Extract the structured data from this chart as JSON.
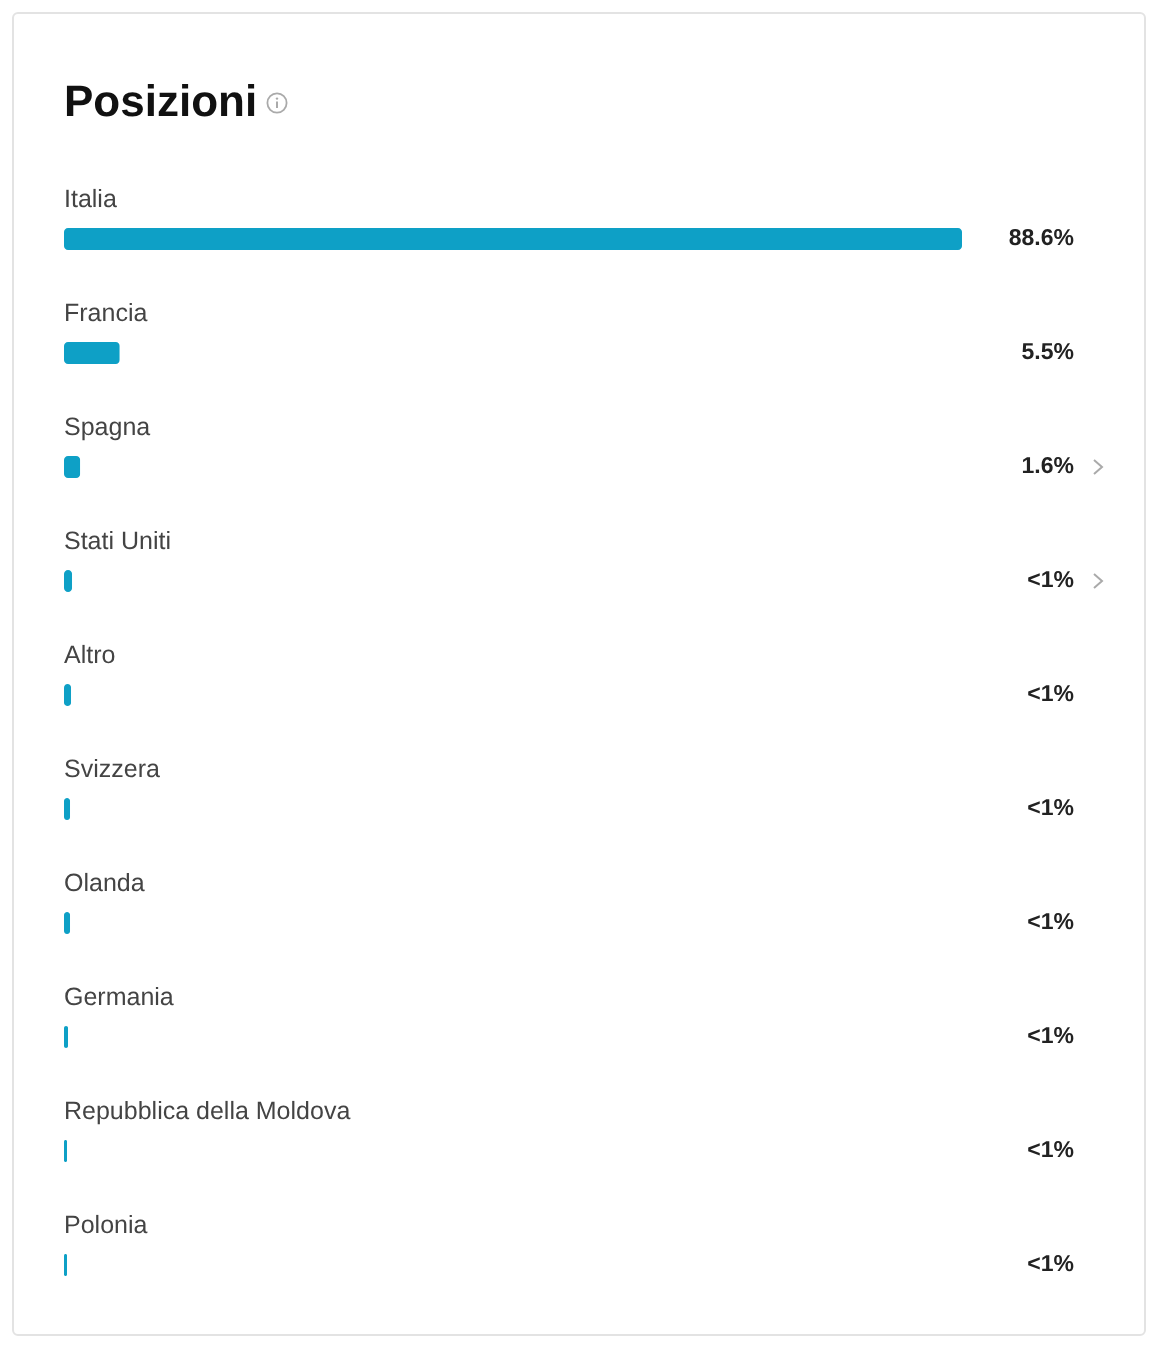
{
  "chart_data": {
    "type": "bar",
    "orientation": "horizontal",
    "title": "Posizioni",
    "color": "#0ea0c6",
    "categories": [
      "Italia",
      "Francia",
      "Spagna",
      "Stati Uniti",
      "Altro",
      "Svizzera",
      "Olanda",
      "Germania",
      "Repubblica della Moldova",
      "Polonia"
    ],
    "values": [
      88.6,
      5.5,
      1.6,
      0.8,
      0.7,
      0.6,
      0.6,
      0.4,
      0.3,
      0.3
    ],
    "value_labels": [
      "88.6%",
      "5.5%",
      "1.6%",
      "<1%",
      "<1%",
      "<1%",
      "<1%",
      "<1%",
      "<1%",
      "<1%"
    ]
  }
}
